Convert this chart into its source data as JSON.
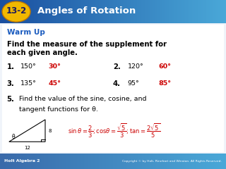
{
  "header_bg_left": "#1a4fa0",
  "header_bg_right": "#4aa8d8",
  "header_text": "Angles of Rotation",
  "badge_bg": "#f0b800",
  "badge_text": "13-2",
  "body_bg": "#f0f4fa",
  "warm_up_color": "#1a5bbf",
  "warm_up_text": "Warm Up",
  "instruction_text_line1": "Find the measure of the supplement for",
  "instruction_text_line2": "each given angle.",
  "items": [
    {
      "num": "1.",
      "angle": "150°",
      "answer": "30°"
    },
    {
      "num": "2.",
      "angle": "120°",
      "answer": "60°"
    },
    {
      "num": "3.",
      "angle": "135°",
      "answer": "45°"
    },
    {
      "num": "4.",
      "angle": "95°",
      "answer": "85°"
    }
  ],
  "answer_color": "#cc0000",
  "black_text": "#000000",
  "footer_bg": "#3a6aaa",
  "footer_left": "Holt Algebra 2",
  "footer_right": "Copyright © by Holt, Rinehart and Winston. All Rights Reserved.",
  "triangle_sides": [
    "12",
    "8"
  ],
  "fig_width": 3.2,
  "fig_height": 2.4,
  "dpi": 100
}
